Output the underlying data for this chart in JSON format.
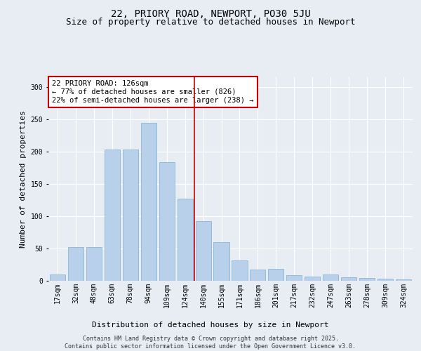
{
  "title": "22, PRIORY ROAD, NEWPORT, PO30 5JU",
  "subtitle": "Size of property relative to detached houses in Newport",
  "xlabel": "Distribution of detached houses by size in Newport",
  "ylabel": "Number of detached properties",
  "categories": [
    "17sqm",
    "32sqm",
    "48sqm",
    "63sqm",
    "78sqm",
    "94sqm",
    "109sqm",
    "124sqm",
    "140sqm",
    "155sqm",
    "171sqm",
    "186sqm",
    "201sqm",
    "217sqm",
    "232sqm",
    "247sqm",
    "263sqm",
    "278sqm",
    "309sqm",
    "324sqm"
  ],
  "bar_values": [
    10,
    52,
    52,
    203,
    203,
    244,
    184,
    127,
    92,
    60,
    32,
    17,
    19,
    9,
    7,
    10,
    5,
    4,
    3,
    2
  ],
  "bar_color": "#b8d0ea",
  "bar_edgecolor": "#7aafd4",
  "background_color": "#e8edf4",
  "grid_color": "#ffffff",
  "vline_color": "#cc0000",
  "annotation_text": "22 PRIORY ROAD: 126sqm\n← 77% of detached houses are smaller (826)\n22% of semi-detached houses are larger (238) →",
  "annotation_box_color": "#cc0000",
  "ylim": [
    0,
    315
  ],
  "footer": "Contains HM Land Registry data © Crown copyright and database right 2025.\nContains public sector information licensed under the Open Government Licence v3.0.",
  "title_fontsize": 10,
  "subtitle_fontsize": 9,
  "axis_label_fontsize": 8,
  "tick_fontsize": 7,
  "annotation_fontsize": 7.5,
  "footer_fontsize": 6
}
